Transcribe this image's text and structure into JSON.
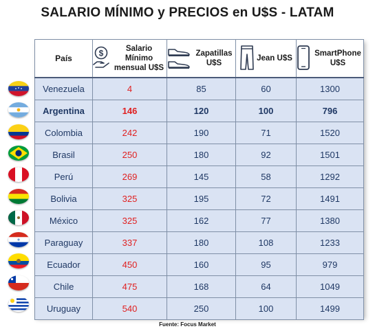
{
  "title": "SALARIO MÍNIMO y PRECIOS en U$S - LATAM",
  "columns": {
    "country": "País",
    "wage": "Salario Mínimo mensual U$S",
    "shoes": "Zapatillas U$S",
    "jean": "Jean U$S",
    "phone": "SmartPhone U$S"
  },
  "icons": [
    "money-hand-icon",
    "sneakers-icon",
    "jeans-icon",
    "smartphone-icon"
  ],
  "rows": [
    {
      "country": "Venezuela",
      "wage": "4",
      "shoes": "85",
      "jean": "60",
      "phone": "1300"
    },
    {
      "country": "Argentina",
      "wage": "146",
      "shoes": "120",
      "jean": "100",
      "phone": "796"
    },
    {
      "country": "Colombia",
      "wage": "242",
      "shoes": "190",
      "jean": "71",
      "phone": "1520"
    },
    {
      "country": "Brasil",
      "wage": "250",
      "shoes": "180",
      "jean": "92",
      "phone": "1501"
    },
    {
      "country": "Perú",
      "wage": "269",
      "shoes": "145",
      "jean": "58",
      "phone": "1292"
    },
    {
      "country": "Bolivia",
      "wage": "325",
      "shoes": "195",
      "jean": "72",
      "phone": "1491"
    },
    {
      "country": "México",
      "wage": "325",
      "shoes": "162",
      "jean": "77",
      "phone": "1380"
    },
    {
      "country": "Paraguay",
      "wage": "337",
      "shoes": "180",
      "jean": "108",
      "phone": "1233"
    },
    {
      "country": "Ecuador",
      "wage": "450",
      "shoes": "160",
      "jean": "95",
      "phone": "979"
    },
    {
      "country": "Chile",
      "wage": "475",
      "shoes": "168",
      "jean": "64",
      "phone": "1049"
    },
    {
      "country": "Uruguay",
      "wage": "540",
      "shoes": "250",
      "jean": "100",
      "phone": "1499"
    }
  ],
  "highlight_row": "Argentina",
  "colors": {
    "header_bg": "#ffffff",
    "row_bg": "#dae3f3",
    "wage_text": "#e02020",
    "text": "#1f3864"
  },
  "source": "Fuente: Focus Market"
}
